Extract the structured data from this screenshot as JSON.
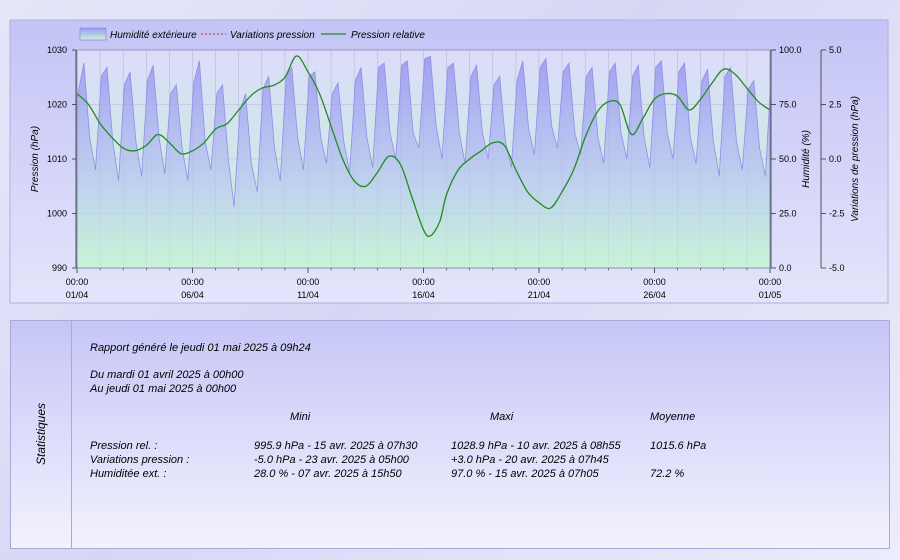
{
  "legend": {
    "humidity": "Humidité extérieure",
    "variation": "Variations pression",
    "pressure": "Pression relative"
  },
  "colors": {
    "humidity_fill_top": "#9a9aee",
    "humidity_line": "#8f8fe8",
    "variation": "#cc2222",
    "pressure": "#228b22",
    "plot_bg_top": "#dcdcfa",
    "plot_bg_bottom": "#c6f2d6"
  },
  "chart_data": {
    "type": "line",
    "x_ticks": [
      {
        "time": "00:00",
        "date": "01/04"
      },
      {
        "time": "00:00",
        "date": "06/04"
      },
      {
        "time": "00:00",
        "date": "11/04"
      },
      {
        "time": "00:00",
        "date": "16/04"
      },
      {
        "time": "00:00",
        "date": "21/04"
      },
      {
        "time": "00:00",
        "date": "26/04"
      },
      {
        "time": "00:00",
        "date": "01/05"
      }
    ],
    "xlim_days": [
      0,
      30
    ],
    "axes": {
      "pressure": {
        "label": "Pression (hPa)",
        "range": [
          990,
          1030
        ],
        "ticks": [
          "1030",
          "1020",
          "1010",
          "1000",
          "990"
        ]
      },
      "humidity": {
        "label": "Humidité (%)",
        "range": [
          0,
          100
        ],
        "ticks": [
          "100.0",
          "75.0",
          "50.0",
          "25.0",
          "0.0"
        ]
      },
      "variation": {
        "label": "Variations de pression (hPa)",
        "range": [
          -5,
          5
        ],
        "ticks": [
          "5.0",
          "2.5",
          "0.0",
          "-2.5",
          "-5.0"
        ]
      }
    },
    "grid": true,
    "legend_position": "top",
    "series": [
      {
        "name": "Pression relative",
        "axis": "pressure",
        "points": [
          [
            0.0,
            1022.0
          ],
          [
            0.5,
            1020.0
          ],
          [
            1.0,
            1016.5
          ],
          [
            1.5,
            1014.0
          ],
          [
            2.0,
            1012.0
          ],
          [
            2.5,
            1011.5
          ],
          [
            3.0,
            1012.5
          ],
          [
            3.5,
            1014.5
          ],
          [
            4.0,
            1013.0
          ],
          [
            4.5,
            1011.0
          ],
          [
            5.0,
            1011.5
          ],
          [
            5.5,
            1013.0
          ],
          [
            6.0,
            1015.5
          ],
          [
            6.5,
            1016.5
          ],
          [
            7.0,
            1019.0
          ],
          [
            7.5,
            1021.5
          ],
          [
            8.0,
            1023.0
          ],
          [
            8.5,
            1023.5
          ],
          [
            9.0,
            1025.0
          ],
          [
            9.5,
            1028.9
          ],
          [
            10.0,
            1026.0
          ],
          [
            10.5,
            1022.0
          ],
          [
            11.0,
            1016.0
          ],
          [
            11.5,
            1010.0
          ],
          [
            12.0,
            1006.0
          ],
          [
            12.5,
            1005.0
          ],
          [
            13.0,
            1007.5
          ],
          [
            13.5,
            1010.5
          ],
          [
            14.0,
            1009.0
          ],
          [
            14.5,
            1003.0
          ],
          [
            15.0,
            997.0
          ],
          [
            15.3,
            995.9
          ],
          [
            15.7,
            998.5
          ],
          [
            16.0,
            1003.5
          ],
          [
            16.5,
            1008.0
          ],
          [
            17.0,
            1010.0
          ],
          [
            17.5,
            1011.5
          ],
          [
            18.0,
            1013.0
          ],
          [
            18.5,
            1012.5
          ],
          [
            19.0,
            1008.0
          ],
          [
            19.5,
            1004.0
          ],
          [
            20.0,
            1002.0
          ],
          [
            20.5,
            1001.0
          ],
          [
            21.0,
            1004.0
          ],
          [
            21.5,
            1008.0
          ],
          [
            22.0,
            1014.0
          ],
          [
            22.5,
            1018.5
          ],
          [
            23.0,
            1020.5
          ],
          [
            23.5,
            1020.0
          ],
          [
            24.0,
            1014.5
          ],
          [
            24.5,
            1017.5
          ],
          [
            25.0,
            1021.0
          ],
          [
            25.5,
            1022.0
          ],
          [
            26.0,
            1021.5
          ],
          [
            26.5,
            1019.0
          ],
          [
            27.0,
            1021.0
          ],
          [
            27.5,
            1024.0
          ],
          [
            28.0,
            1026.5
          ],
          [
            28.5,
            1025.5
          ],
          [
            29.0,
            1023.0
          ],
          [
            29.5,
            1020.5
          ],
          [
            30.0,
            1019.0
          ]
        ]
      },
      {
        "name": "Humidité extérieure",
        "axis": "humidity",
        "points": [
          [
            0.0,
            78
          ],
          [
            0.3,
            94
          ],
          [
            0.55,
            60
          ],
          [
            0.8,
            45
          ],
          [
            1.05,
            88
          ],
          [
            1.3,
            92
          ],
          [
            1.55,
            58
          ],
          [
            1.8,
            40
          ],
          [
            2.05,
            84
          ],
          [
            2.3,
            90
          ],
          [
            2.55,
            58
          ],
          [
            2.8,
            42
          ],
          [
            3.05,
            86
          ],
          [
            3.3,
            93
          ],
          [
            3.55,
            60
          ],
          [
            3.8,
            43
          ],
          [
            4.05,
            80
          ],
          [
            4.3,
            84
          ],
          [
            4.55,
            55
          ],
          [
            4.8,
            40
          ],
          [
            5.05,
            85
          ],
          [
            5.3,
            95
          ],
          [
            5.55,
            58
          ],
          [
            5.8,
            45
          ],
          [
            6.05,
            80
          ],
          [
            6.3,
            84
          ],
          [
            6.55,
            50
          ],
          [
            6.8,
            28
          ],
          [
            7.05,
            72
          ],
          [
            7.3,
            80
          ],
          [
            7.55,
            48
          ],
          [
            7.8,
            35
          ],
          [
            8.05,
            82
          ],
          [
            8.3,
            88
          ],
          [
            8.55,
            55
          ],
          [
            8.8,
            40
          ],
          [
            9.05,
            88
          ],
          [
            9.3,
            92
          ],
          [
            9.55,
            60
          ],
          [
            9.8,
            45
          ],
          [
            10.05,
            88
          ],
          [
            10.3,
            90
          ],
          [
            10.55,
            60
          ],
          [
            10.8,
            48
          ],
          [
            11.05,
            80
          ],
          [
            11.3,
            85
          ],
          [
            11.55,
            58
          ],
          [
            11.8,
            44
          ],
          [
            12.05,
            86
          ],
          [
            12.3,
            92
          ],
          [
            12.55,
            60
          ],
          [
            12.8,
            46
          ],
          [
            13.05,
            92
          ],
          [
            13.3,
            94
          ],
          [
            13.55,
            62
          ],
          [
            13.8,
            50
          ],
          [
            14.05,
            93
          ],
          [
            14.3,
            95
          ],
          [
            14.55,
            62
          ],
          [
            14.8,
            55
          ],
          [
            15.05,
            96
          ],
          [
            15.3,
            97
          ],
          [
            15.55,
            65
          ],
          [
            15.8,
            50
          ],
          [
            16.05,
            92
          ],
          [
            16.3,
            94
          ],
          [
            16.55,
            62
          ],
          [
            16.8,
            48
          ],
          [
            17.05,
            88
          ],
          [
            17.3,
            93
          ],
          [
            17.55,
            62
          ],
          [
            17.8,
            50
          ],
          [
            18.05,
            84
          ],
          [
            18.3,
            88
          ],
          [
            18.55,
            58
          ],
          [
            18.8,
            46
          ],
          [
            19.05,
            86
          ],
          [
            19.3,
            95
          ],
          [
            19.55,
            64
          ],
          [
            19.8,
            52
          ],
          [
            20.05,
            92
          ],
          [
            20.3,
            96
          ],
          [
            20.55,
            65
          ],
          [
            20.8,
            55
          ],
          [
            21.05,
            90
          ],
          [
            21.3,
            94
          ],
          [
            21.55,
            62
          ],
          [
            21.8,
            52
          ],
          [
            22.05,
            88
          ],
          [
            22.3,
            92
          ],
          [
            22.55,
            60
          ],
          [
            22.8,
            48
          ],
          [
            23.05,
            90
          ],
          [
            23.3,
            94
          ],
          [
            23.55,
            62
          ],
          [
            23.8,
            50
          ],
          [
            24.05,
            88
          ],
          [
            24.3,
            93
          ],
          [
            24.55,
            60
          ],
          [
            24.8,
            46
          ],
          [
            25.05,
            92
          ],
          [
            25.3,
            95
          ],
          [
            25.55,
            62
          ],
          [
            25.8,
            50
          ],
          [
            26.05,
            90
          ],
          [
            26.3,
            94
          ],
          [
            26.55,
            60
          ],
          [
            26.8,
            48
          ],
          [
            27.05,
            86
          ],
          [
            27.3,
            91
          ],
          [
            27.55,
            58
          ],
          [
            27.8,
            42
          ],
          [
            28.05,
            88
          ],
          [
            28.3,
            92
          ],
          [
            28.55,
            58
          ],
          [
            28.8,
            45
          ],
          [
            29.05,
            82
          ],
          [
            29.3,
            86
          ],
          [
            29.55,
            55
          ],
          [
            29.8,
            42
          ],
          [
            30.0,
            80
          ]
        ]
      },
      {
        "name": "Variations pression",
        "axis": "variation",
        "points": []
      }
    ]
  },
  "stats": {
    "panel_label": "Statistiques",
    "report_line": "Rapport généré le jeudi 01 mai 2025 à 09h24",
    "period_from": "Du mardi 01 avril 2025 à 00h00",
    "period_to": "Au jeudi 01 mai 2025 à 00h00",
    "col_min": "Mini",
    "col_max": "Maxi",
    "col_avg": "Moyenne",
    "rows": [
      {
        "label": "Pression rel. :",
        "min": "995.9 hPa - 15 avr. 2025 à 07h30",
        "max": "1028.9 hPa - 10 avr. 2025 à 08h55",
        "avg": "1015.6 hPa"
      },
      {
        "label": "Variations pression :",
        "min": "-5.0 hPa - 23 avr. 2025 à 05h00",
        "max": "+3.0 hPa - 20 avr. 2025 à 07h45",
        "avg": ""
      },
      {
        "label": "Humiditée ext. :",
        "min": "28.0 % - 07 avr. 2025 à 15h50",
        "max": "97.0 % - 15 avr. 2025 à 07h05",
        "avg": "72.2 %"
      }
    ]
  }
}
